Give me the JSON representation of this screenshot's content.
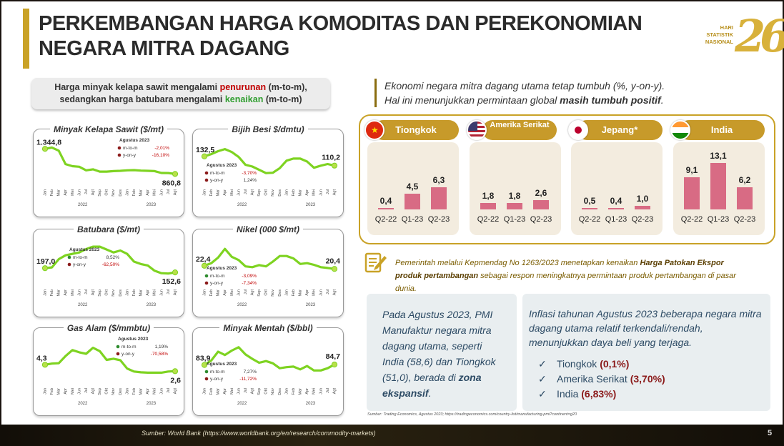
{
  "title_line1": "PERKEMBANGAN HARGA KOMODITAS DAN PEREKONOMIAN",
  "title_line2": "NEGARA MITRA DAGANG",
  "logo": {
    "text": "HARI STATISTIK NASIONAL",
    "number": "26"
  },
  "left_summary": {
    "part1": "Harga minyak kelapa sawit mengalami ",
    "down": "penurunan",
    "part2": " (m-to-m),",
    "part3": "sedangkan harga batubara mengalami ",
    "up": "kenaikan",
    "part4": " (m-to-m)"
  },
  "months": [
    "Jan",
    "Feb",
    "Mar",
    "Apr",
    "Mei",
    "Jun",
    "Jul",
    "Agt",
    "Sep",
    "Okt",
    "Nov",
    "Des",
    "Jan",
    "Feb",
    "Mar",
    "Apr",
    "Mei",
    "Jun",
    "Jul",
    "Agt"
  ],
  "years": [
    "2022",
    "2023"
  ],
  "commodity_charts": [
    {
      "title": "Minyak Kelapa Sawit ($/mt)",
      "start_label": "1.344,8",
      "end_label": "860,8",
      "info_title": "Agustus 2023",
      "mtm_label": "m-to-m",
      "mtm": "-2,01%",
      "yoy_label": "y-on-y",
      "yoy": "-16,10%",
      "values": [
        1344.8,
        1370,
        1310,
        1050,
        1010,
        1000,
        930,
        950,
        905,
        905,
        915,
        920,
        930,
        935,
        925,
        920,
        915,
        880,
        878,
        860.8
      ],
      "ylim": [
        700,
        1500
      ]
    },
    {
      "title": "Bijih Besi $/dmtu)",
      "start_label": "132,5",
      "end_label": "110,2",
      "info_title": "Agustus 2023",
      "mtm_label": "m-to-m",
      "mtm": "-3,70%",
      "yoy_label": "y-on-y",
      "yoy": "1,24%",
      "values": [
        132.5,
        138,
        145,
        150,
        143,
        131,
        112,
        108,
        100,
        92,
        93,
        104,
        122,
        127,
        127,
        120,
        105,
        110,
        114,
        110.2
      ],
      "ylim": [
        70,
        170
      ]
    },
    {
      "title": "Batubara ($/mt)",
      "start_label": "197,0",
      "end_label": "152,6",
      "info_title": "Agustus 2023",
      "mtm_label": "m-to-m",
      "mtm": "8,52%",
      "yoy_label": "y-on-y",
      "yoy": "-62,50%",
      "values": [
        197,
        205,
        290,
        330,
        345,
        360,
        395,
        420,
        420,
        390,
        360,
        380,
        345,
        265,
        240,
        225,
        170,
        145,
        141,
        152.6
      ],
      "ylim": [
        50,
        480
      ]
    },
    {
      "title": "Nikel (000 $/mt)",
      "start_label": "22,4",
      "end_label": "20,4",
      "info_title": "Agustus 2023",
      "mtm_label": "m-to-m",
      "mtm": "-3,09%",
      "yoy_label": "y-on-y",
      "yoy": "-7,34%",
      "values": [
        22.4,
        24.0,
        27.5,
        33.0,
        28.0,
        26.0,
        22.0,
        21.5,
        22.8,
        22.0,
        25.0,
        28.5,
        28.5,
        27.0,
        23.5,
        24.0,
        23.0,
        21.5,
        21.0,
        20.4
      ],
      "ylim": [
        12,
        38
      ]
    },
    {
      "title": "Gas Alam ($/mmbtu)",
      "start_label": "4,3",
      "end_label": "2,6",
      "info_title": "Agustus 2023",
      "mtm_label": "m-to-m",
      "mtm": "1,19%",
      "yoy_label": "y-on-y",
      "yoy": "-70,58%",
      "values": [
        4.3,
        4.6,
        4.7,
        6.6,
        8.2,
        7.6,
        7.2,
        8.8,
        7.9,
        5.6,
        5.9,
        5.5,
        3.3,
        2.5,
        2.3,
        2.2,
        2.2,
        2.2,
        2.5,
        2.6
      ],
      "ylim": [
        0,
        11
      ]
    },
    {
      "title": "Minyak Mentah ($/bbl)",
      "start_label": "83,9",
      "end_label": "84,7",
      "info_title": "Agustus 2023",
      "mtm_label": "m-to-m",
      "mtm": "7,27%",
      "yoy_label": "y-on-y",
      "yoy": "-11,72%",
      "values": [
        83.9,
        92,
        108,
        102,
        110,
        116,
        103,
        95,
        88,
        91,
        87,
        78,
        80,
        81,
        76,
        82,
        74,
        74,
        78,
        84.7
      ],
      "ylim": [
        55,
        130
      ]
    }
  ],
  "right_intro": {
    "line1": "Ekonomi negara mitra dagang utama tetap tumbuh (%, y-on-y).",
    "line2a": "Hal ini menunjukkan permintaan global ",
    "line2b": "masih tumbuh positif",
    "line2c": "."
  },
  "chart_data": [
    {
      "type": "bar",
      "title": "Tiongkok",
      "categories": [
        "Q2-22",
        "Q1-23",
        "Q2-23"
      ],
      "values": [
        0.4,
        4.5,
        6.3
      ]
    },
    {
      "type": "bar",
      "title": "Amerika Serikat",
      "categories": [
        "Q2-22",
        "Q1-23",
        "Q2-23"
      ],
      "values": [
        1.8,
        1.8,
        2.6
      ]
    },
    {
      "type": "bar",
      "title": "Jepang*",
      "categories": [
        "Q2-22",
        "Q1-23",
        "Q2-23"
      ],
      "values": [
        0.5,
        0.4,
        1.0
      ]
    },
    {
      "type": "bar",
      "title": "India",
      "categories": [
        "Q2-22",
        "Q1-23",
        "Q2-23"
      ],
      "values": [
        9.1,
        13.1,
        6.2
      ]
    }
  ],
  "countries": [
    {
      "name": "Tiongkok",
      "labels": [
        "0,4",
        "4,5",
        "6,3"
      ]
    },
    {
      "name": "Amerika Serikat",
      "labels": [
        "1,8",
        "1,8",
        "2,6"
      ]
    },
    {
      "name": "Jepang*",
      "labels": [
        "0,5",
        "0,4",
        "1,0"
      ]
    },
    {
      "name": "India",
      "labels": [
        "9,1",
        "13,1",
        "6,2"
      ]
    }
  ],
  "note": {
    "p1": "Pemerintah melalui Kepmendag No 1263/2023 menetapkan kenaikan ",
    "b1": "Harga Patokan Ekspor produk pertambangan",
    "p2": " sebagai respon meningkatnya permintaan produk pertambangan di pasar dunia."
  },
  "pmi": {
    "text": "Pada Agustus 2023, PMI Manufaktur negara mitra dagang utama, seperti India (58,6) dan Tiongkok (51,0), berada di ",
    "bold": "zona ekspansif",
    "end": "."
  },
  "inflation": {
    "intro": "Inflasi tahunan Agustus 2023 beberapa negara mitra dagang utama relatif terkendali/rendah, menunjukkan daya beli yang terjaga.",
    "items": [
      {
        "country": "Tiongkok",
        "value": "(0,1%)"
      },
      {
        "country": "Amerika Serikat",
        "value": "(3,70%)"
      },
      {
        "country": "India",
        "value": "(6,83%)"
      }
    ]
  },
  "source_small": "Sumber: Trading Economics, Agustus 2023; https://tradingeconomics.com/country-list/manufacturing-pmi?continent=g20",
  "source_main": "Sumber: World Bank (https://www.worldbank.org/en/research/commodity-markets)",
  "page_number": "5",
  "colors": {
    "gold": "#c9a227",
    "line": "#7ed321",
    "bar": "#d86b84",
    "text_blue": "#2c4a64"
  }
}
